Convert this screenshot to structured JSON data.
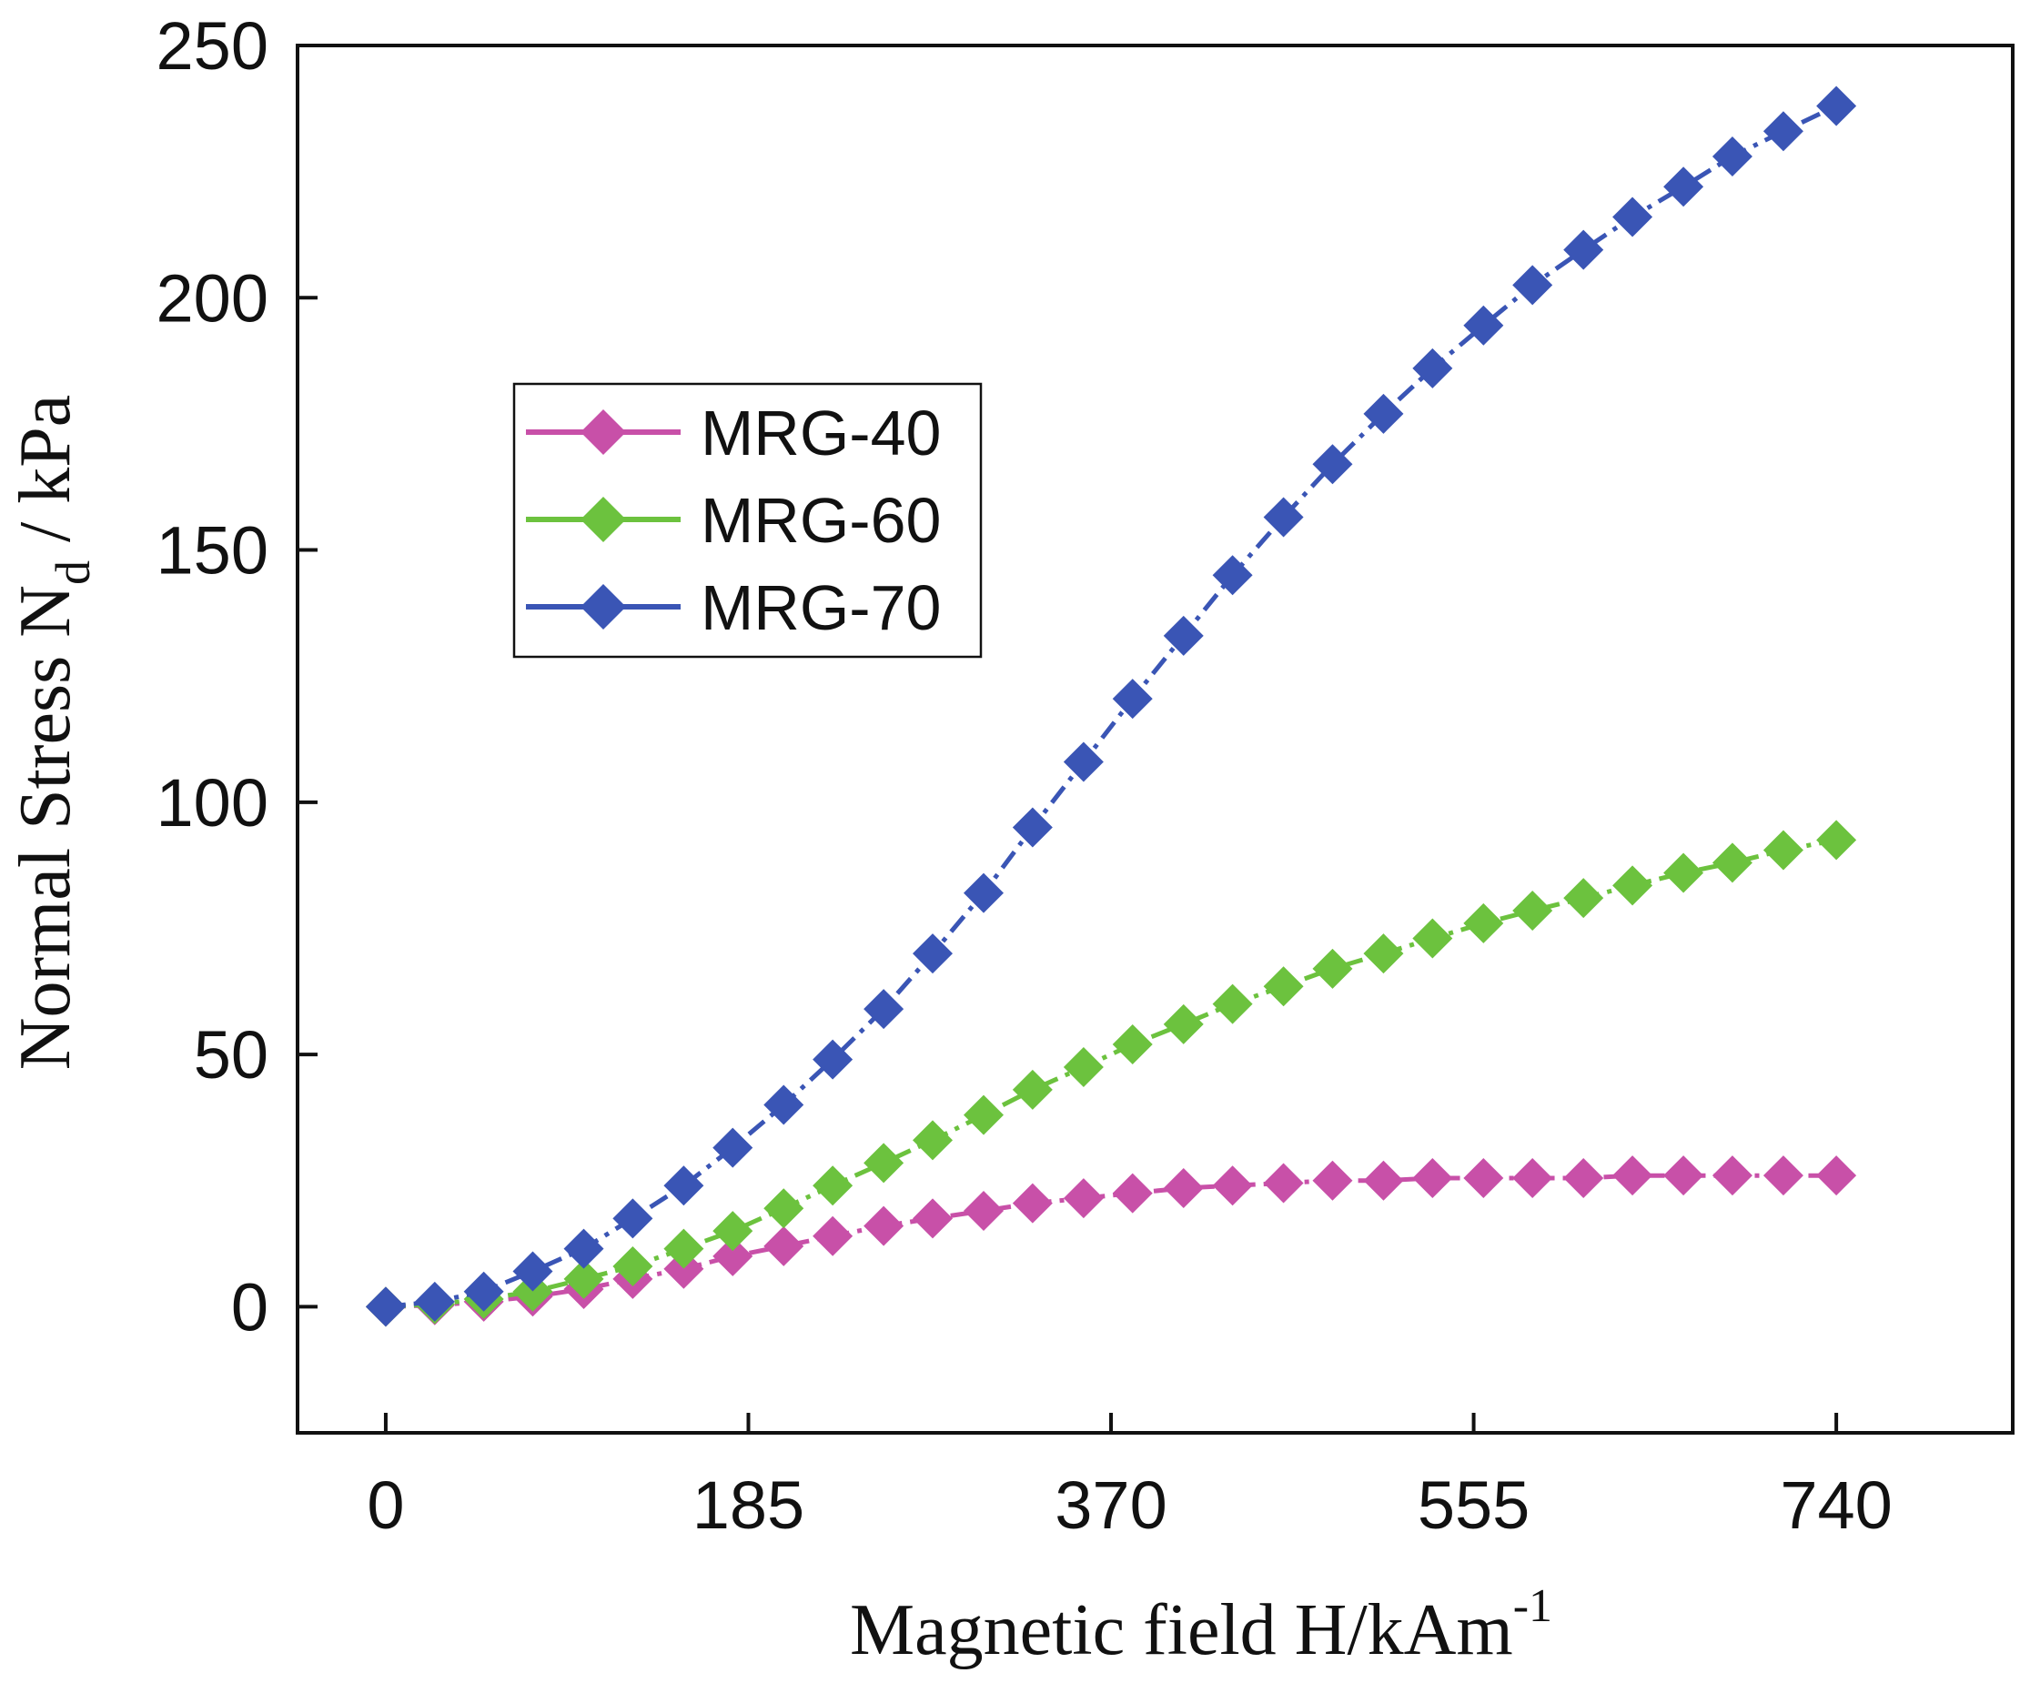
{
  "chart_data": {
    "type": "line",
    "title": "",
    "xlabel": "Magnetic field H/kAm",
    "xlabel_sup": "-1",
    "ylabel": "Normal Stress N",
    "ylabel_sub": "d",
    "ylabel_unit": " / kPa",
    "xlim": [
      -45,
      830
    ],
    "ylim": [
      -25,
      250
    ],
    "xticks": [
      0,
      185,
      370,
      555,
      740
    ],
    "yticks": [
      0,
      50,
      100,
      150,
      200,
      250
    ],
    "legend_position": "upper-left",
    "x": [
      0,
      25,
      50,
      75,
      101,
      126,
      152,
      177,
      203,
      228,
      254,
      279,
      305,
      330,
      356,
      381,
      407,
      432,
      458,
      483,
      509,
      534,
      560,
      585,
      611,
      636,
      662,
      687,
      713,
      740
    ],
    "series": [
      {
        "name": "MRG-40",
        "color": "#c850a8",
        "values": [
          0,
          0.3,
          1,
          2,
          3.5,
          5.5,
          7.5,
          10,
          12,
          14,
          16,
          17.5,
          19,
          20.5,
          21.5,
          22.5,
          23.5,
          24,
          24.5,
          25,
          25,
          25.5,
          25.5,
          25.5,
          25.5,
          26,
          26,
          26,
          26,
          26
        ]
      },
      {
        "name": "MRG-60",
        "color": "#6cc23e",
        "values": [
          0,
          0.5,
          1.5,
          3,
          5.5,
          8,
          11.5,
          15,
          19.5,
          24,
          28.5,
          33,
          38,
          43,
          47.5,
          52,
          56,
          60,
          63.5,
          67,
          70,
          73,
          76,
          78.5,
          81,
          83.5,
          86,
          88,
          90.5,
          92.5
        ]
      },
      {
        "name": "MRG-70",
        "color": "#3a55b5",
        "values": [
          0,
          1,
          3,
          7,
          11.5,
          17.5,
          24,
          31.5,
          40,
          49,
          59,
          70,
          82,
          95,
          108,
          120.5,
          133,
          145,
          156.5,
          167,
          177,
          186,
          194.5,
          202.5,
          209.5,
          216,
          222,
          228,
          233,
          238
        ]
      }
    ]
  }
}
